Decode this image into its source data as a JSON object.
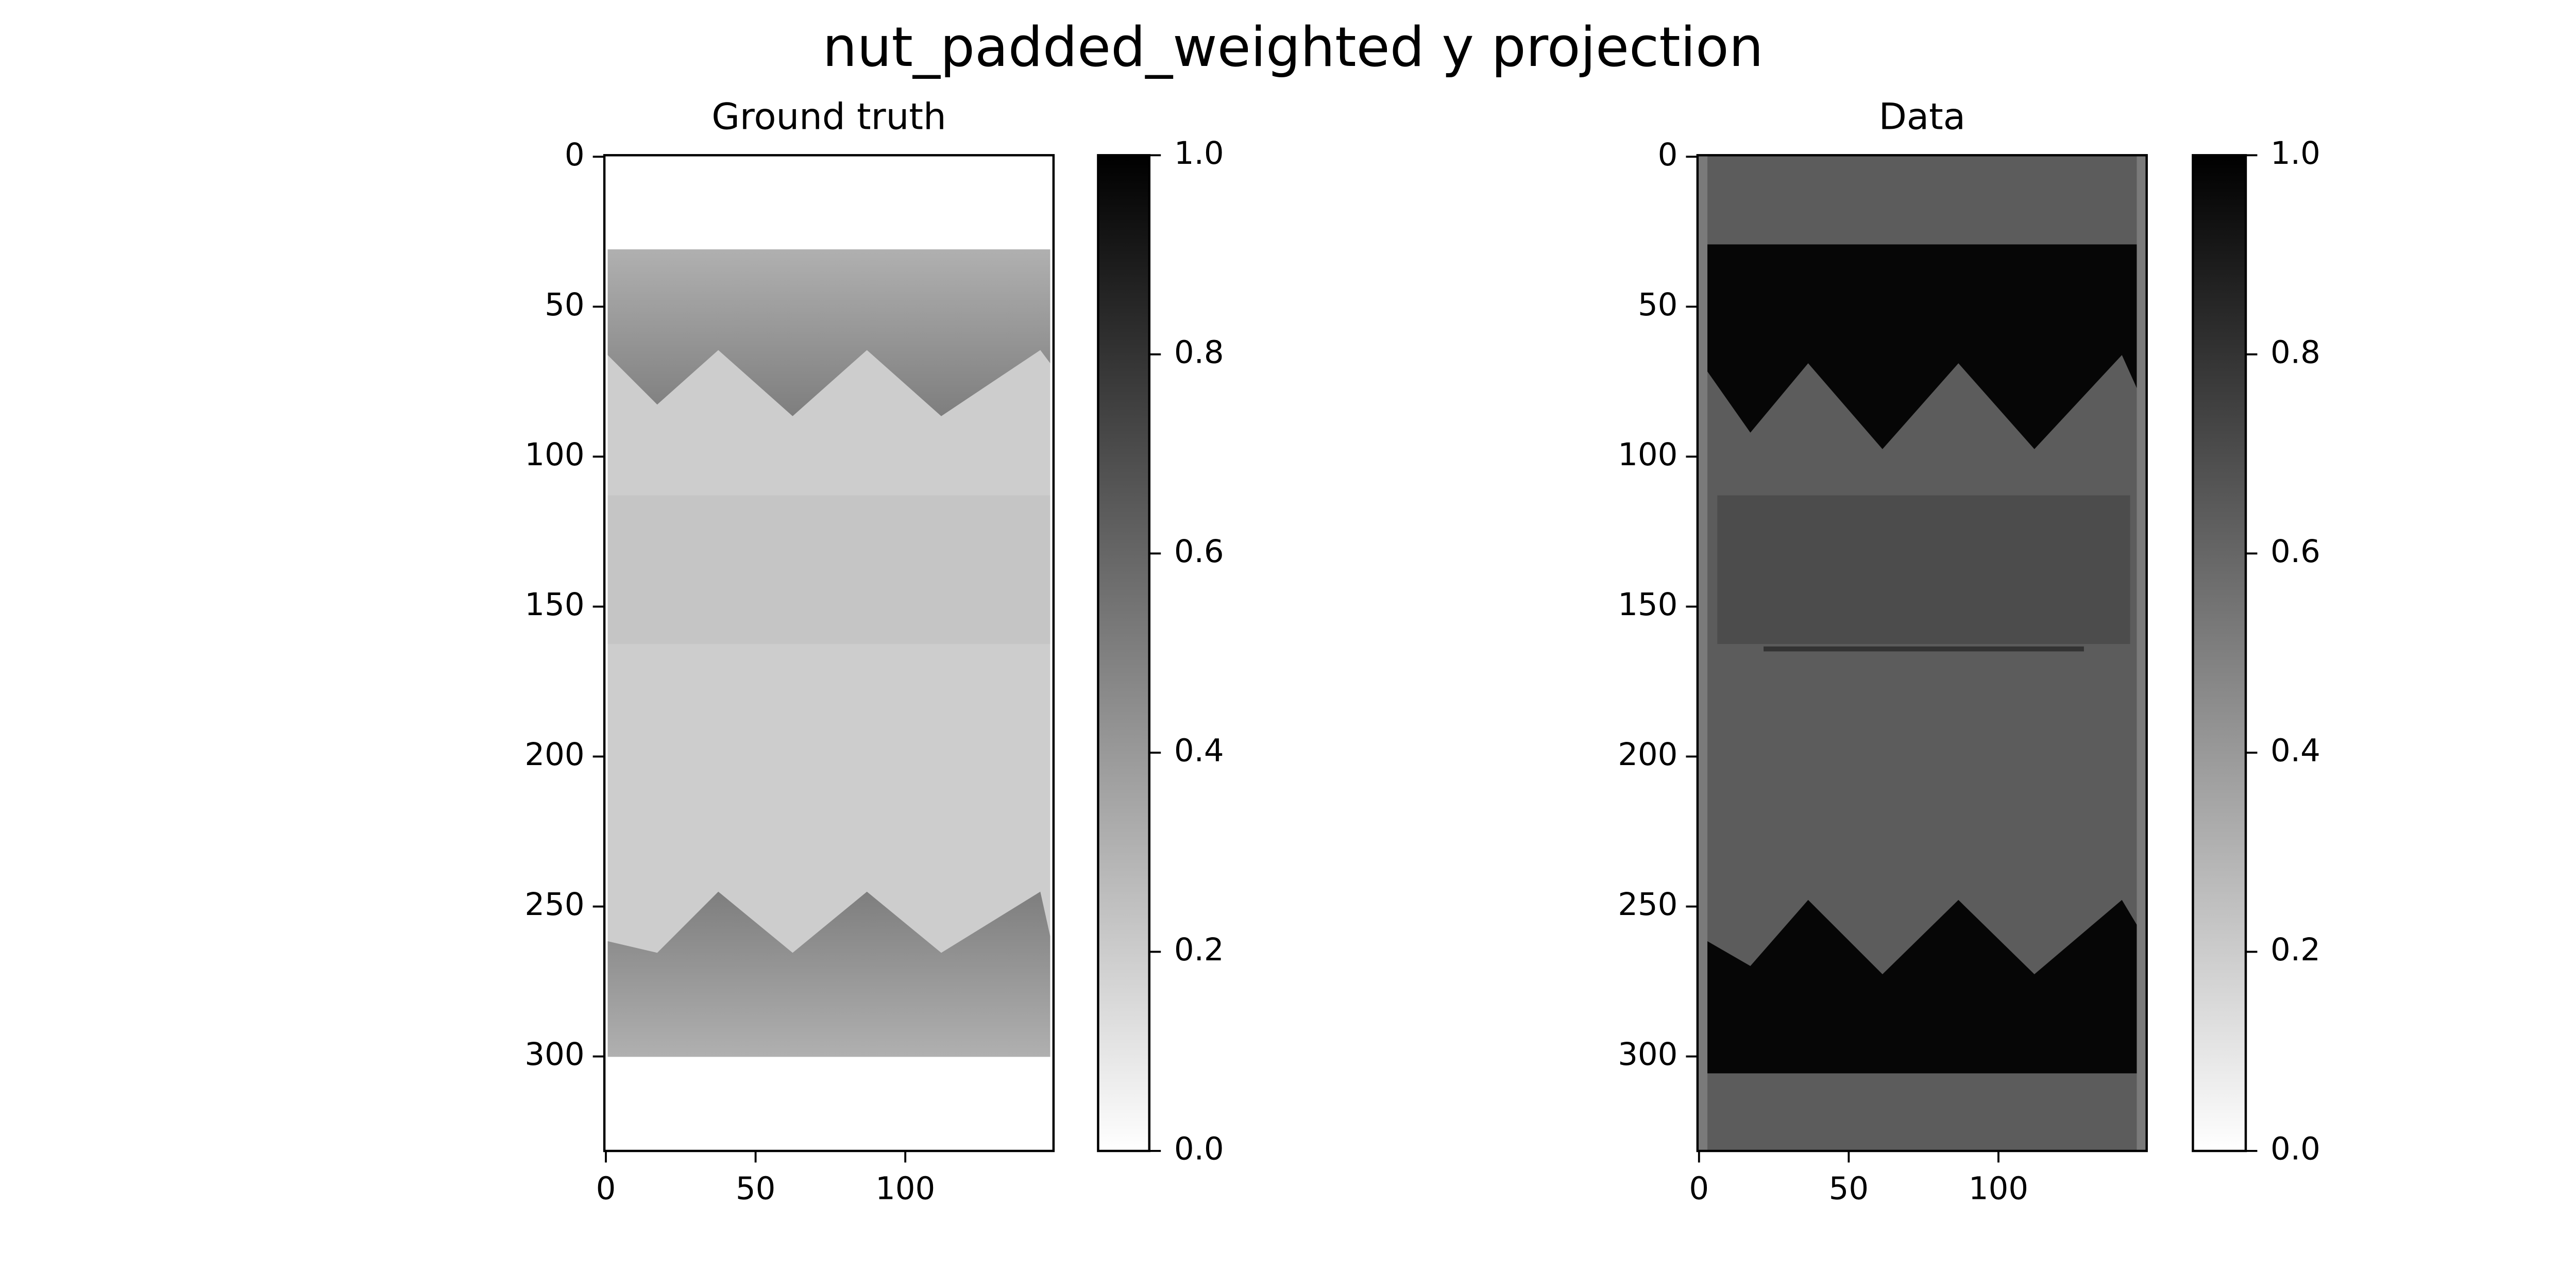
{
  "title": "nut_padded_weighted y projection",
  "chart_data": [
    {
      "type": "image",
      "title": "Ground truth",
      "xlim": [
        -0.5,
        149.5
      ],
      "ylim": [
        331.5,
        -0.5
      ],
      "xticks": [
        0,
        50,
        100
      ],
      "yticks": [
        0,
        50,
        100,
        150,
        200,
        250,
        300
      ],
      "colorbar": {
        "lim": [
          0,
          1
        ],
        "colors": [
          "#ffffff",
          "#000000"
        ],
        "ticks": [
          {
            "value": 0,
            "label": "0.0"
          },
          {
            "value": 0.2,
            "label": "0.2"
          },
          {
            "value": 0.4,
            "label": "0.4"
          },
          {
            "value": 0.6,
            "label": "0.6"
          },
          {
            "value": 0.8,
            "label": "0.8"
          },
          {
            "value": 1,
            "label": "1.0"
          }
        ]
      }
    },
    {
      "type": "image",
      "title": "Data",
      "xlim": [
        -0.5,
        149.5
      ],
      "ylim": [
        331.5,
        -0.5
      ],
      "xticks": [
        0,
        50,
        100
      ],
      "yticks": [
        0,
        50,
        100,
        150,
        200,
        250,
        300
      ],
      "colorbar": {
        "lim": [
          0,
          1
        ],
        "colors": [
          "#ffffff",
          "#000000"
        ],
        "ticks": [
          {
            "value": 0,
            "label": "0.0"
          },
          {
            "value": 0.2,
            "label": "0.2"
          },
          {
            "value": 0.4,
            "label": "0.4"
          },
          {
            "value": 0.6,
            "label": "0.6"
          },
          {
            "value": 0.8,
            "label": "0.8"
          },
          {
            "value": 1,
            "label": "1.0"
          }
        ]
      }
    }
  ]
}
